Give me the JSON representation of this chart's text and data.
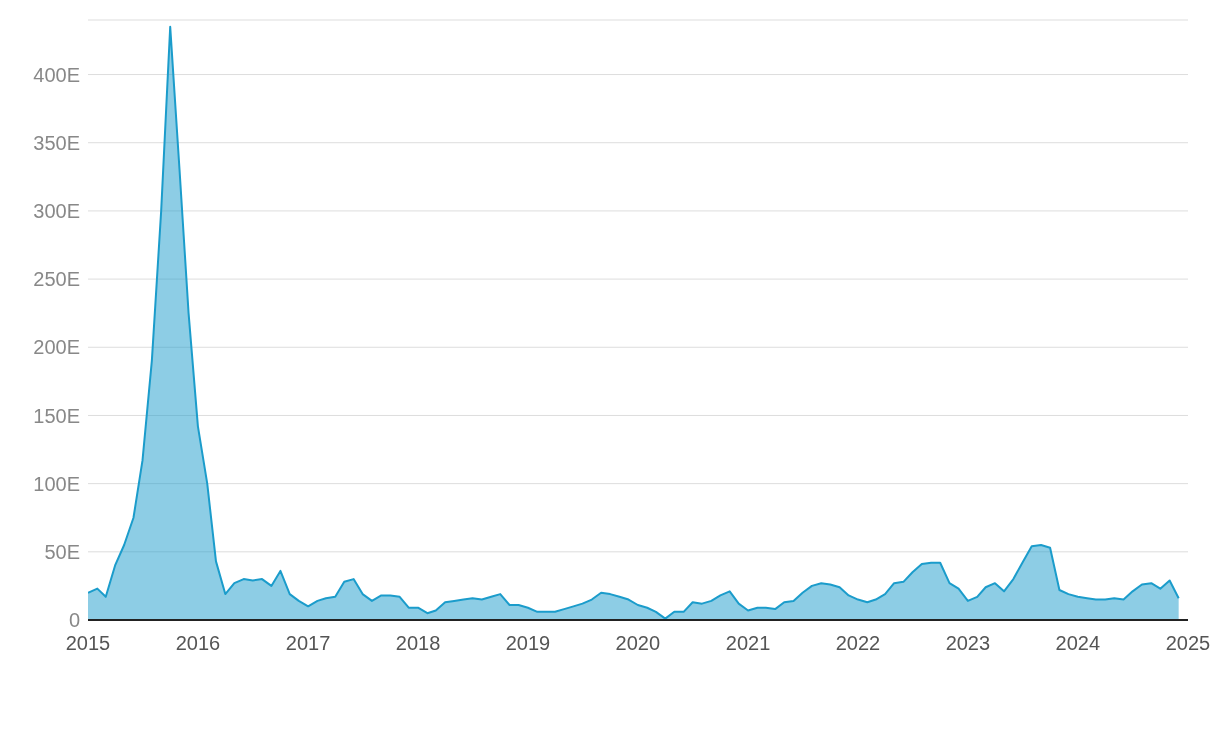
{
  "chart_data": {
    "type": "area",
    "color": "#1b9ccb",
    "x": [
      "2015-01",
      "2015-02",
      "2015-03",
      "2015-04",
      "2015-05",
      "2015-06",
      "2015-07",
      "2015-08",
      "2015-09",
      "2015-10",
      "2015-11",
      "2015-12",
      "2016-01",
      "2016-02",
      "2016-03",
      "2016-04",
      "2016-05",
      "2016-06",
      "2016-07",
      "2016-08",
      "2016-09",
      "2016-10",
      "2016-11",
      "2016-12",
      "2017-01",
      "2017-02",
      "2017-03",
      "2017-04",
      "2017-05",
      "2017-06",
      "2017-07",
      "2017-08",
      "2017-09",
      "2017-10",
      "2017-11",
      "2017-12",
      "2018-01",
      "2018-02",
      "2018-03",
      "2018-04",
      "2018-05",
      "2018-06",
      "2018-07",
      "2018-08",
      "2018-09",
      "2018-10",
      "2018-11",
      "2018-12",
      "2019-01",
      "2019-02",
      "2019-03",
      "2019-04",
      "2019-05",
      "2019-06",
      "2019-07",
      "2019-08",
      "2019-09",
      "2019-10",
      "2019-11",
      "2019-12",
      "2020-01",
      "2020-02",
      "2020-03",
      "2020-04",
      "2020-05",
      "2020-06",
      "2020-07",
      "2020-08",
      "2020-09",
      "2020-10",
      "2020-11",
      "2020-12",
      "2021-01",
      "2021-02",
      "2021-03",
      "2021-04",
      "2021-05",
      "2021-06",
      "2021-07",
      "2021-08",
      "2021-09",
      "2021-10",
      "2021-11",
      "2021-12",
      "2022-01",
      "2022-02",
      "2022-03",
      "2022-04",
      "2022-05",
      "2022-06",
      "2022-07",
      "2022-08",
      "2022-09",
      "2022-10",
      "2022-11",
      "2022-12",
      "2023-01",
      "2023-02",
      "2023-03",
      "2023-04",
      "2023-05",
      "2023-06",
      "2023-07",
      "2023-08",
      "2023-09",
      "2023-10",
      "2023-11",
      "2023-12",
      "2024-01",
      "2024-02",
      "2024-03",
      "2024-04",
      "2024-05",
      "2024-06",
      "2024-07",
      "2024-08",
      "2024-09",
      "2024-10",
      "2024-11",
      "2024-12"
    ],
    "values": [
      20,
      23,
      17,
      40,
      55,
      75,
      117,
      190,
      300,
      435,
      330,
      225,
      142,
      100,
      43,
      19,
      27,
      30,
      29,
      30,
      25,
      36,
      19,
      14,
      10,
      14,
      16,
      17,
      28,
      30,
      19,
      14,
      18,
      18,
      17,
      9,
      9,
      5,
      7,
      13,
      14,
      15,
      16,
      15,
      17,
      19,
      11,
      11,
      9,
      6,
      6,
      6,
      8,
      10,
      12,
      15,
      20,
      19,
      17,
      15,
      11,
      9,
      6,
      1,
      6,
      6,
      13,
      12,
      14,
      18,
      21,
      12,
      7,
      9,
      9,
      8,
      13,
      14,
      20,
      25,
      27,
      26,
      24,
      18,
      15,
      13,
      15,
      19,
      27,
      28,
      35,
      41,
      42,
      42,
      27,
      23,
      14,
      17,
      24,
      27,
      21,
      30,
      42,
      54,
      55,
      53,
      22,
      19,
      17,
      16,
      15,
      15,
      16,
      15,
      21,
      26,
      27,
      23,
      29,
      16
    ],
    "xlim": [
      "2015-01",
      "2025-01"
    ],
    "xticks": [
      {
        "value": "2015-01",
        "label": "2015"
      },
      {
        "value": "2016-01",
        "label": "2016"
      },
      {
        "value": "2017-01",
        "label": "2017"
      },
      {
        "value": "2018-01",
        "label": "2018"
      },
      {
        "value": "2019-01",
        "label": "2019"
      },
      {
        "value": "2020-01",
        "label": "2020"
      },
      {
        "value": "2021-01",
        "label": "2021"
      },
      {
        "value": "2022-01",
        "label": "2022"
      },
      {
        "value": "2023-01",
        "label": "2023"
      },
      {
        "value": "2024-01",
        "label": "2024"
      },
      {
        "value": "2025-01",
        "label": "2025"
      }
    ],
    "ylim": [
      0,
      440
    ],
    "yticks": [
      0,
      {
        "value": 50,
        "label": "50E"
      },
      {
        "value": 100,
        "label": "100E"
      },
      {
        "value": 150,
        "label": "150E"
      },
      {
        "value": 200,
        "label": "200E"
      },
      {
        "value": 250,
        "label": "250E"
      },
      {
        "value": 300,
        "label": "300E"
      },
      {
        "value": 350,
        "label": "350E"
      },
      {
        "value": 400,
        "label": "400E"
      }
    ],
    "grid": "y"
  }
}
